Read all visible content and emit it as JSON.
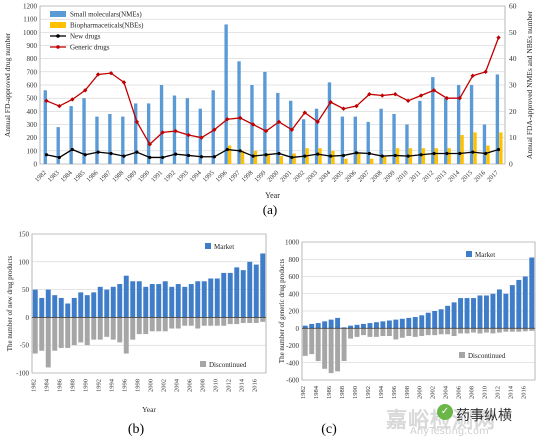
{
  "colors": {
    "small_bar": "#5b9bd5",
    "bio_bar": "#ffc000",
    "new_line": "#000000",
    "generic_line": "#c00000",
    "market_bar": "#3f7dc9",
    "disc_bar": "#a6a6a6",
    "grid": "#c8c8c8"
  },
  "panel_labels": {
    "a": "(a)",
    "b": "(b)",
    "c": "(c)"
  },
  "watermark": {
    "line1": "嘉峪检测网",
    "line2": "AnyTesting.com",
    "account": "药事纵横"
  },
  "chart_data": [
    {
      "id": "a",
      "type": "bar",
      "title": "",
      "xlabel": "Year",
      "ylabel": "Annual FD-approved drug number",
      "y2label": "Annual FDA-approved NMEs and NBEs number",
      "ylim": [
        0,
        1200
      ],
      "yticks": [
        0,
        100,
        200,
        300,
        400,
        500,
        600,
        700,
        800,
        900,
        1000,
        1100,
        1200
      ],
      "y2lim": [
        0,
        60
      ],
      "y2ticks": [
        0,
        10,
        20,
        30,
        40,
        50,
        60
      ],
      "grid": true,
      "legend_position": "top-left",
      "categories": [
        "1982",
        "1983",
        "1984",
        "1985",
        "1986",
        "1987",
        "1988",
        "1989",
        "1990",
        "1991",
        "1992",
        "1993",
        "1994",
        "1995",
        "1996",
        "1997",
        "1998",
        "1999",
        "2000",
        "2001",
        "2002",
        "2003",
        "2004",
        "2005",
        "2006",
        "2007",
        "2008",
        "2009",
        "2010",
        "2011",
        "2012",
        "2013",
        "2014",
        "2015",
        "2016",
        "2017"
      ],
      "series": [
        {
          "name": "Small moleculars(NMEs)",
          "kind": "bar",
          "axis": "right",
          "values": [
            28,
            14,
            22,
            25,
            18,
            19,
            18,
            23,
            23,
            30,
            26,
            25,
            21,
            28,
            53,
            39,
            30,
            35,
            27,
            24,
            17,
            21,
            31,
            18,
            18,
            16,
            21,
            19,
            15,
            24,
            33,
            25,
            30,
            30,
            15,
            34
          ]
        },
        {
          "name": "Biopharmaceticals(NBEs)",
          "kind": "bar",
          "axis": "right",
          "values": [
            0,
            0,
            0,
            0,
            0,
            0,
            0,
            0,
            0,
            0,
            0,
            0,
            0,
            0,
            7,
            5,
            5,
            4,
            3,
            4,
            6,
            6,
            5,
            2,
            4,
            2,
            3,
            6,
            6,
            6,
            6,
            6,
            11,
            12,
            7,
            12
          ]
        },
        {
          "name": "New drugs",
          "kind": "line",
          "axis": "left",
          "marker": "circle",
          "values": [
            70,
            50,
            110,
            70,
            90,
            80,
            60,
            90,
            50,
            50,
            75,
            65,
            55,
            55,
            110,
            100,
            60,
            70,
            80,
            50,
            60,
            75,
            60,
            65,
            85,
            80,
            60,
            65,
            60,
            70,
            80,
            80,
            80,
            90,
            80,
            110
          ]
        },
        {
          "name": "Generic drugs",
          "kind": "line",
          "axis": "left",
          "marker": "diamond",
          "values": [
            480,
            440,
            490,
            560,
            680,
            690,
            620,
            320,
            150,
            240,
            250,
            220,
            200,
            260,
            340,
            350,
            300,
            250,
            320,
            260,
            390,
            320,
            470,
            420,
            440,
            530,
            520,
            530,
            480,
            520,
            560,
            500,
            500,
            670,
            700,
            960
          ]
        }
      ]
    },
    {
      "id": "b",
      "type": "bar",
      "title": "",
      "xlabel": "Year",
      "ylabel": "The number of new drug products",
      "ylim": [
        -100,
        150
      ],
      "yticks": [
        -100,
        -50,
        0,
        50,
        100,
        150
      ],
      "grid": true,
      "categories": [
        "1982",
        "1983",
        "1984",
        "1985",
        "1986",
        "1987",
        "1988",
        "1989",
        "1990",
        "1991",
        "1992",
        "1993",
        "1994",
        "1995",
        "1996",
        "1997",
        "1998",
        "1999",
        "2000",
        "2001",
        "2002",
        "2003",
        "2004",
        "2005",
        "2006",
        "2007",
        "2008",
        "2009",
        "2010",
        "2011",
        "2012",
        "2013",
        "2014",
        "2015",
        "2016",
        "2017"
      ],
      "tick_labels": [
        "1982",
        "1984",
        "1986",
        "1988",
        "1990",
        "1992",
        "1994",
        "1996",
        "1998",
        "2000",
        "2002",
        "2004",
        "2006",
        "2008",
        "2010",
        "2012",
        "2014",
        "2016"
      ],
      "series": [
        {
          "name": "Market",
          "values": [
            50,
            35,
            50,
            40,
            35,
            25,
            35,
            45,
            40,
            45,
            55,
            50,
            55,
            60,
            75,
            65,
            65,
            55,
            60,
            60,
            65,
            55,
            60,
            55,
            60,
            65,
            65,
            70,
            70,
            80,
            80,
            90,
            85,
            100,
            95,
            115
          ]
        },
        {
          "name": "Discontinued",
          "values": [
            -65,
            -60,
            -90,
            -60,
            -55,
            -55,
            -50,
            -45,
            -50,
            -40,
            -40,
            -35,
            -40,
            -45,
            -65,
            -40,
            -30,
            -30,
            -25,
            -25,
            -25,
            -20,
            -20,
            -15,
            -15,
            -20,
            -15,
            -15,
            -15,
            -15,
            -12,
            -12,
            -10,
            -10,
            -10,
            -8
          ]
        }
      ],
      "legend_position": "inside"
    },
    {
      "id": "c",
      "type": "bar",
      "title": "",
      "xlabel": "",
      "ylabel": "The number of generic drug products",
      "ylim": [
        -600,
        1000
      ],
      "yticks": [
        -600,
        -400,
        -200,
        0,
        200,
        400,
        600,
        800,
        1000
      ],
      "grid": true,
      "categories": [
        "1982",
        "1983",
        "1984",
        "1985",
        "1986",
        "1987",
        "1988",
        "1989",
        "1990",
        "1991",
        "1992",
        "1993",
        "1994",
        "1995",
        "1996",
        "1997",
        "1998",
        "1999",
        "2000",
        "2001",
        "2002",
        "2003",
        "2004",
        "2005",
        "2006",
        "2007",
        "2008",
        "2009",
        "2010",
        "2011",
        "2012",
        "2013",
        "2014",
        "2015",
        "2016",
        "2017"
      ],
      "tick_labels": [
        "1982",
        "1984",
        "1986",
        "1988",
        "1990",
        "1992",
        "1994",
        "1996",
        "1998",
        "2000",
        "2002",
        "2004",
        "2006",
        "2008",
        "2010",
        "2012",
        "2014",
        "2016"
      ],
      "series": [
        {
          "name": "Market",
          "values": [
            30,
            50,
            60,
            80,
            100,
            120,
            10,
            30,
            40,
            50,
            60,
            70,
            80,
            90,
            100,
            110,
            120,
            130,
            150,
            180,
            200,
            220,
            260,
            300,
            350,
            350,
            350,
            380,
            380,
            400,
            450,
            400,
            500,
            560,
            600,
            820
          ]
        },
        {
          "name": "Discontinued",
          "values": [
            -320,
            -300,
            -380,
            -470,
            -520,
            -500,
            -380,
            -120,
            -100,
            -80,
            -100,
            -100,
            -90,
            -90,
            -130,
            -110,
            -90,
            -100,
            -90,
            -80,
            -80,
            -70,
            -70,
            -90,
            -60,
            -60,
            -50,
            -60,
            -50,
            -60,
            -50,
            -40,
            -40,
            -40,
            -35,
            -30
          ]
        }
      ],
      "legend_position": "inside"
    }
  ]
}
